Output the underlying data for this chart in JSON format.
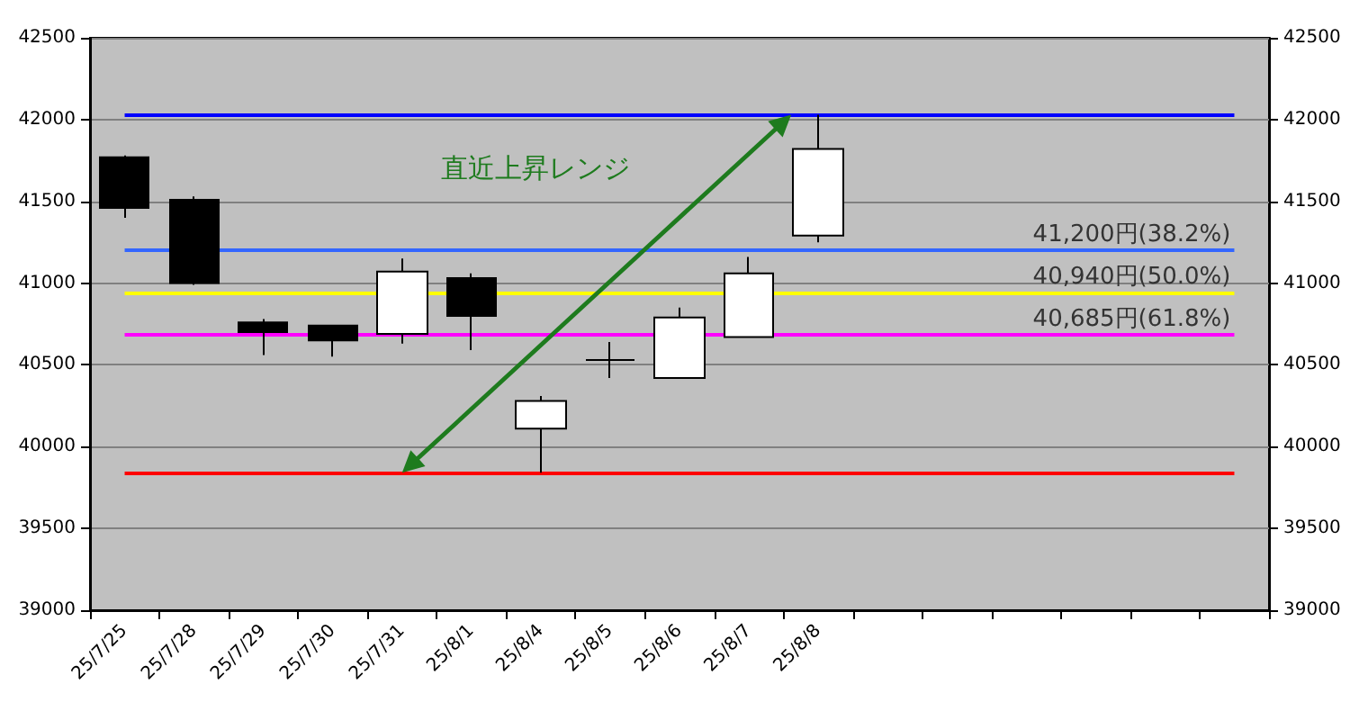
{
  "chart_data": {
    "type": "candlestick",
    "categories": [
      "25/7/25",
      "25/7/28",
      "25/7/29",
      "25/7/30",
      "25/7/31",
      "25/8/1",
      "25/8/4",
      "25/8/5",
      "25/8/6",
      "25/8/7",
      "25/8/8",
      null,
      null,
      null,
      null,
      null,
      null
    ],
    "ohlc": [
      [
        41770,
        41780,
        41400,
        41460
      ],
      [
        41510,
        41530,
        40990,
        41000
      ],
      [
        40760,
        40780,
        40560,
        40700
      ],
      [
        40740,
        40740,
        40550,
        40650
      ],
      [
        40690,
        41150,
        40630,
        41070
      ],
      [
        41030,
        41060,
        40590,
        40800
      ],
      [
        40110,
        40310,
        39840,
        40280
      ],
      [
        40530,
        40640,
        40420,
        40530
      ],
      [
        40420,
        40850,
        40420,
        40790
      ],
      [
        40670,
        41160,
        40670,
        41060
      ],
      [
        41290,
        42030,
        41250,
        41820
      ],
      null,
      null,
      null,
      null,
      null,
      null
    ],
    "colors": [
      "#000000",
      "#000000",
      "#000000",
      "#000000",
      "#ffffff",
      "#000000",
      "#ffffff",
      "#000000",
      "#ffffff",
      "#ffffff",
      "#ffffff",
      null,
      null,
      null,
      null,
      null,
      null
    ],
    "ylim": [
      39000,
      42500
    ],
    "yticks": [
      39000,
      39500,
      40000,
      40500,
      41000,
      41500,
      42000,
      42500
    ],
    "y2lim": [
      39000,
      42500
    ],
    "y2ticks": [
      39000,
      39500,
      40000,
      40500,
      41000,
      41500,
      42000,
      42500
    ],
    "ref_lines": [
      {
        "axis": "y",
        "value": 42030,
        "color": "#0000ff"
      },
      {
        "axis": "y",
        "value": 41200,
        "label": "41,200円(38.2%)",
        "color": "#3366ff"
      },
      {
        "axis": "y",
        "value": 40940,
        "label": "40,940円(50.0%)",
        "color": "#ffff00"
      },
      {
        "axis": "y",
        "value": 40685,
        "label": "40,685円(61.8%)",
        "color": "#ff00ff"
      },
      {
        "axis": "y",
        "value": 39840,
        "color": "#ff0000"
      }
    ],
    "annotations": [
      "直近上昇レンジ"
    ],
    "grid": "y"
  }
}
